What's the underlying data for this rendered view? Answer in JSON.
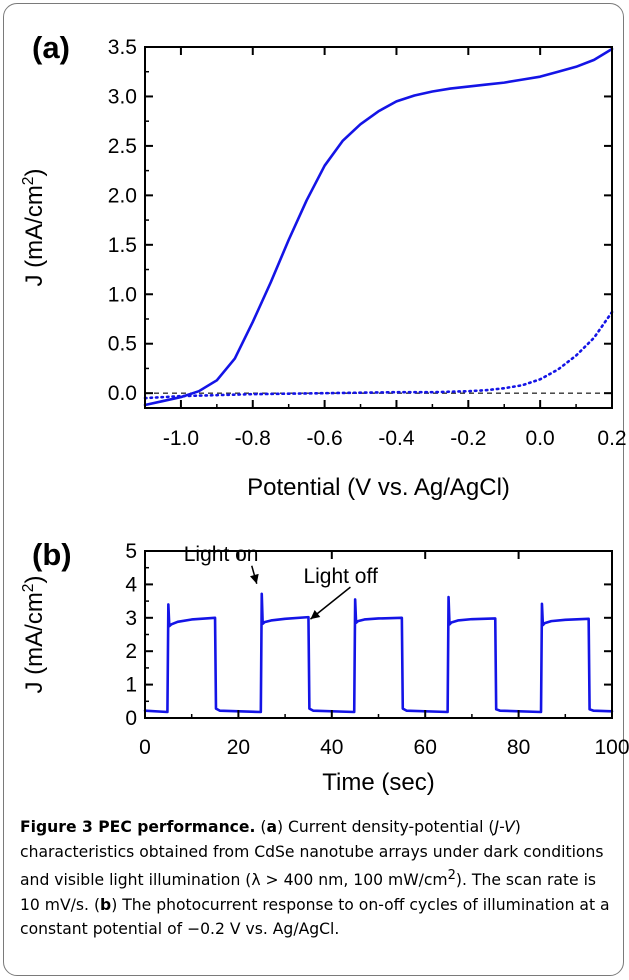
{
  "chart_data": [
    {
      "type": "line",
      "panel_label": "(a)",
      "xlabel": "Potential (V vs. Ag/AgCl)",
      "ylabel": "J (mA/cm²)",
      "ylabel_parts": {
        "main": "J (mA/cm",
        "sup": "2",
        "end": ")"
      },
      "xlim": [
        -1.1,
        0.2
      ],
      "ylim": [
        -0.15,
        3.5
      ],
      "xticks": [
        -1.0,
        -0.8,
        -0.6,
        -0.4,
        -0.2,
        0.0,
        0.2
      ],
      "xtick_labels": [
        "-1.0",
        "-0.8",
        "-0.6",
        "-0.4",
        "-0.2",
        "0.0",
        "0.2"
      ],
      "yticks": [
        0.0,
        0.5,
        1.0,
        1.5,
        2.0,
        2.5,
        3.0,
        3.5
      ],
      "ytick_labels": [
        "0.0",
        "0.5",
        "1.0",
        "1.5",
        "2.0",
        "2.5",
        "3.0",
        "3.5"
      ],
      "reference_line_y": 0,
      "series": [
        {
          "style": "solid",
          "color": "#1414e6",
          "x": [
            -1.1,
            -1.05,
            -1.0,
            -0.95,
            -0.9,
            -0.85,
            -0.8,
            -0.75,
            -0.7,
            -0.65,
            -0.6,
            -0.55,
            -0.5,
            -0.45,
            -0.4,
            -0.35,
            -0.3,
            -0.25,
            -0.2,
            -0.15,
            -0.1,
            -0.05,
            0.0,
            0.05,
            0.1,
            0.15,
            0.2
          ],
          "y": [
            -0.12,
            -0.08,
            -0.04,
            0.02,
            0.13,
            0.35,
            0.72,
            1.12,
            1.55,
            1.95,
            2.3,
            2.55,
            2.72,
            2.85,
            2.95,
            3.01,
            3.05,
            3.08,
            3.1,
            3.12,
            3.14,
            3.17,
            3.2,
            3.25,
            3.3,
            3.37,
            3.48
          ]
        },
        {
          "style": "dotted",
          "color": "#1414e6",
          "x": [
            -1.1,
            -1.0,
            -0.9,
            -0.8,
            -0.6,
            -0.4,
            -0.3,
            -0.2,
            -0.15,
            -0.1,
            -0.05,
            0.0,
            0.05,
            0.1,
            0.15,
            0.2
          ],
          "y": [
            -0.05,
            -0.03,
            -0.02,
            -0.01,
            0.0,
            0.01,
            0.01,
            0.02,
            0.03,
            0.05,
            0.08,
            0.14,
            0.24,
            0.38,
            0.56,
            0.82
          ]
        }
      ]
    },
    {
      "type": "line",
      "panel_label": "(b)",
      "xlabel": "Time (sec)",
      "ylabel": "J (mA/cm²)",
      "ylabel_parts": {
        "main": "J (mA/cm",
        "sup": "2",
        "end": ")"
      },
      "xlim": [
        0,
        100
      ],
      "ylim": [
        0,
        5
      ],
      "xticks": [
        0,
        20,
        40,
        60,
        80,
        100
      ],
      "xtick_labels": [
        "0",
        "20",
        "40",
        "60",
        "80",
        "100"
      ],
      "yticks": [
        0,
        1,
        2,
        3,
        4,
        5
      ],
      "ytick_labels": [
        "0",
        "1",
        "2",
        "3",
        "4",
        "5"
      ],
      "series": [
        {
          "style": "solid",
          "color": "#1414e6",
          "x": [
            0,
            4.8,
            5.0,
            5.2,
            5.6,
            7,
            10,
            15,
            15.2,
            16,
            24.8,
            25.0,
            25.2,
            25.6,
            27,
            30,
            35,
            35.2,
            36,
            44.8,
            45.0,
            45.2,
            45.6,
            47,
            50,
            55,
            55.2,
            56,
            64.8,
            65.0,
            65.2,
            65.6,
            67,
            70,
            75,
            75.2,
            76,
            84.8,
            85.0,
            85.2,
            85.6,
            87,
            90,
            95,
            95.2,
            96,
            100
          ],
          "y": [
            0.22,
            0.18,
            3.4,
            2.75,
            2.8,
            2.88,
            2.95,
            3.0,
            0.28,
            0.22,
            0.18,
            3.72,
            2.82,
            2.87,
            2.92,
            2.97,
            3.02,
            0.28,
            0.22,
            0.18,
            3.55,
            2.85,
            2.9,
            2.95,
            2.98,
            3.0,
            0.28,
            0.22,
            0.18,
            3.62,
            2.8,
            2.86,
            2.92,
            2.96,
            2.98,
            0.26,
            0.22,
            0.18,
            3.42,
            2.78,
            2.84,
            2.9,
            2.94,
            2.97,
            0.26,
            0.22,
            0.2
          ]
        }
      ],
      "annotations": [
        {
          "text": "Light on",
          "x": 25,
          "y": 3.72
        },
        {
          "text": "Light off",
          "x": 35,
          "y": 3.02
        }
      ]
    }
  ],
  "caption": {
    "title": "Figure 3 PEC performance.",
    "p1": " (",
    "a": "a",
    "p2": ") Current density-potential (",
    "jv": "J-V",
    "p3": ") characteristics obtained from CdSe nanotube arrays under dark conditions and visible light illumination (λ > 400 nm, 100 mW/cm",
    "sup": "2",
    "p4": "). The scan rate is 10 mV/s. (",
    "b": "b",
    "p5": ") The photocurrent response to on-off cycles of illumination at a constant potential of −0.2 V vs. Ag/AgCl."
  }
}
